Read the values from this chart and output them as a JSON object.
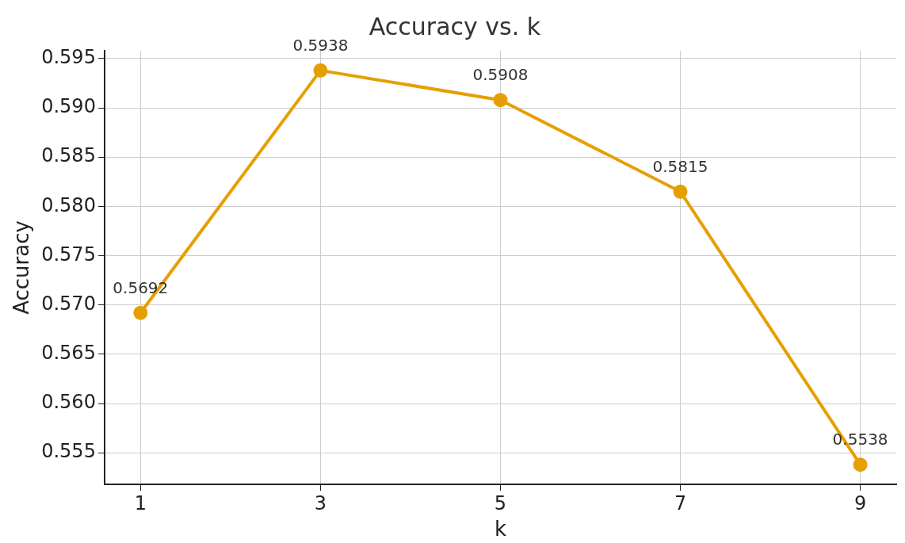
{
  "chart_data": {
    "type": "line",
    "title": "Accuracy vs. k",
    "xlabel": "k",
    "ylabel": "Accuracy",
    "x": [
      1,
      3,
      5,
      7,
      9
    ],
    "series": [
      {
        "color": "#e69f00",
        "values": [
          0.5692,
          0.5938,
          0.5908,
          0.5815,
          0.5538
        ]
      }
    ],
    "xlim": [
      0.6,
      9.4
    ],
    "xticks": [
      1,
      3,
      5,
      7,
      9
    ],
    "ylim": [
      0.5518,
      0.5958
    ],
    "yticks": [
      0.555,
      {
        "value": 0.56,
        "label": "0.560"
      },
      0.565,
      {
        "value": 0.57,
        "label": "0.570"
      },
      0.575,
      {
        "value": 0.58,
        "label": "0.580"
      },
      0.585,
      {
        "value": 0.59,
        "label": "0.590"
      },
      0.595
    ],
    "grid": true,
    "legend": false,
    "marker": "circle",
    "line_style": "solid",
    "data_labels": true
  }
}
